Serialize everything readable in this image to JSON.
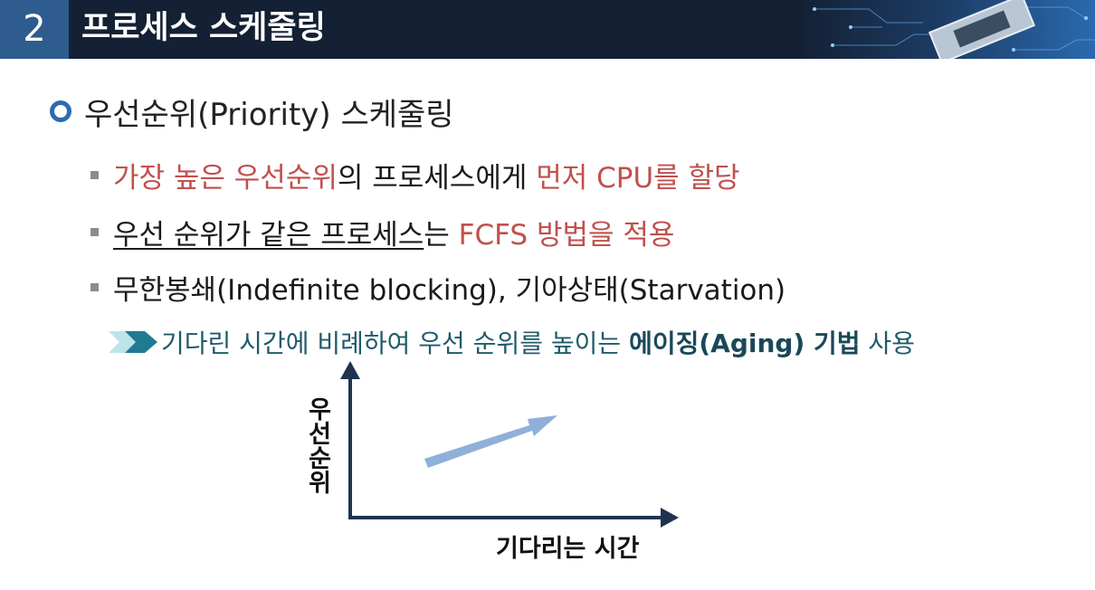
{
  "header": {
    "section_number": "2",
    "title": "프로세스 스케줄링"
  },
  "heading": "우선순위(Priority) 스케줄링",
  "bullets": [
    {
      "parts": [
        "가장 높은 우선순위",
        "의 프로세스에게 ",
        "먼저 CPU를 할당"
      ]
    },
    {
      "parts": [
        "우선 순위가 같은 프로세스",
        "는 ",
        "FCFS 방법을 적용"
      ]
    },
    {
      "parts": [
        "무한봉쇄(Indefinite blocking), 기아상태(Starvation)"
      ]
    }
  ],
  "sub_point": {
    "prefix": "기다린 시간에 비례하여 우선 순위를 높이는 ",
    "emphasis": "에이징(Aging) 기법",
    "suffix": " 사용"
  },
  "graph": {
    "y_axis_label": "우선순위",
    "x_axis_label": "기다리는 시간"
  },
  "colors": {
    "header_bg": "#142033",
    "number_box": "#2e5c8e",
    "accent_red": "#c0504d",
    "teal": "#1f5b6b",
    "axis": "#1f3350",
    "trend_arrow": "#8fb0d8"
  }
}
